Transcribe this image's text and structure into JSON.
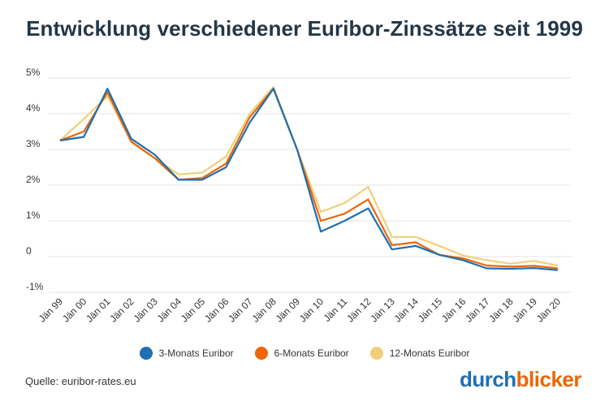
{
  "chart_data": {
    "type": "line",
    "title": "Entwicklung verschiedener Euribor-Zinssätze seit 1999",
    "categories": [
      "Jän 99",
      "Jän 00",
      "Jän 01",
      "Jän 02",
      "Jän 03",
      "Jän 04",
      "Jän 05",
      "Jän 06",
      "Jän 07",
      "Jän 08",
      "Jän 09",
      "Jän 10",
      "Jän 11",
      "Jän 12",
      "Jän 13",
      "Jän 14",
      "Jän 15",
      "Jän 16",
      "Jän 17",
      "Jän 18",
      "Jän 19",
      "Jän 20"
    ],
    "y_ticks": [
      {
        "value": 5,
        "label": "5%"
      },
      {
        "value": 4,
        "label": "4%"
      },
      {
        "value": 3,
        "label": "3%"
      },
      {
        "value": 2,
        "label": "2%"
      },
      {
        "value": 1,
        "label": "1%"
      },
      {
        "value": 0,
        "label": "0"
      },
      {
        "value": -1,
        "label": "-1%"
      }
    ],
    "ylim": [
      -1,
      5
    ],
    "grid": true,
    "legend_position": "bottom",
    "series": [
      {
        "name": "3-Monats Euribor",
        "color": "#1f6fb2",
        "values": [
          3.25,
          3.35,
          4.7,
          3.3,
          2.85,
          2.15,
          2.15,
          2.5,
          3.75,
          4.7,
          3.0,
          0.7,
          1.0,
          1.35,
          0.2,
          0.3,
          0.05,
          -0.1,
          -0.33,
          -0.34,
          -0.32,
          -0.38
        ]
      },
      {
        "name": "6-Monats Euribor",
        "color": "#ec6607",
        "values": [
          3.25,
          3.5,
          4.6,
          3.22,
          2.75,
          2.15,
          2.2,
          2.6,
          3.9,
          4.7,
          3.0,
          1.0,
          1.2,
          1.6,
          0.32,
          0.4,
          0.05,
          -0.05,
          -0.25,
          -0.28,
          -0.26,
          -0.33
        ]
      },
      {
        "name": "12-Monats Euribor",
        "color": "#f1cf7a",
        "values": [
          3.25,
          3.85,
          4.5,
          3.2,
          2.75,
          2.3,
          2.35,
          2.8,
          4.0,
          4.75,
          3.0,
          1.25,
          1.5,
          1.95,
          0.55,
          0.55,
          0.3,
          0.03,
          -0.1,
          -0.2,
          -0.12,
          -0.25
        ]
      }
    ]
  },
  "footer": {
    "source": "Quelle: euribor-rates.eu",
    "brand_part1": "durch",
    "brand_part2": "blicker"
  },
  "colors": {
    "title": "#243746",
    "brand_blue": "#1f6fb2",
    "brand_orange": "#ec6607",
    "grid": "#e3e3e3"
  }
}
